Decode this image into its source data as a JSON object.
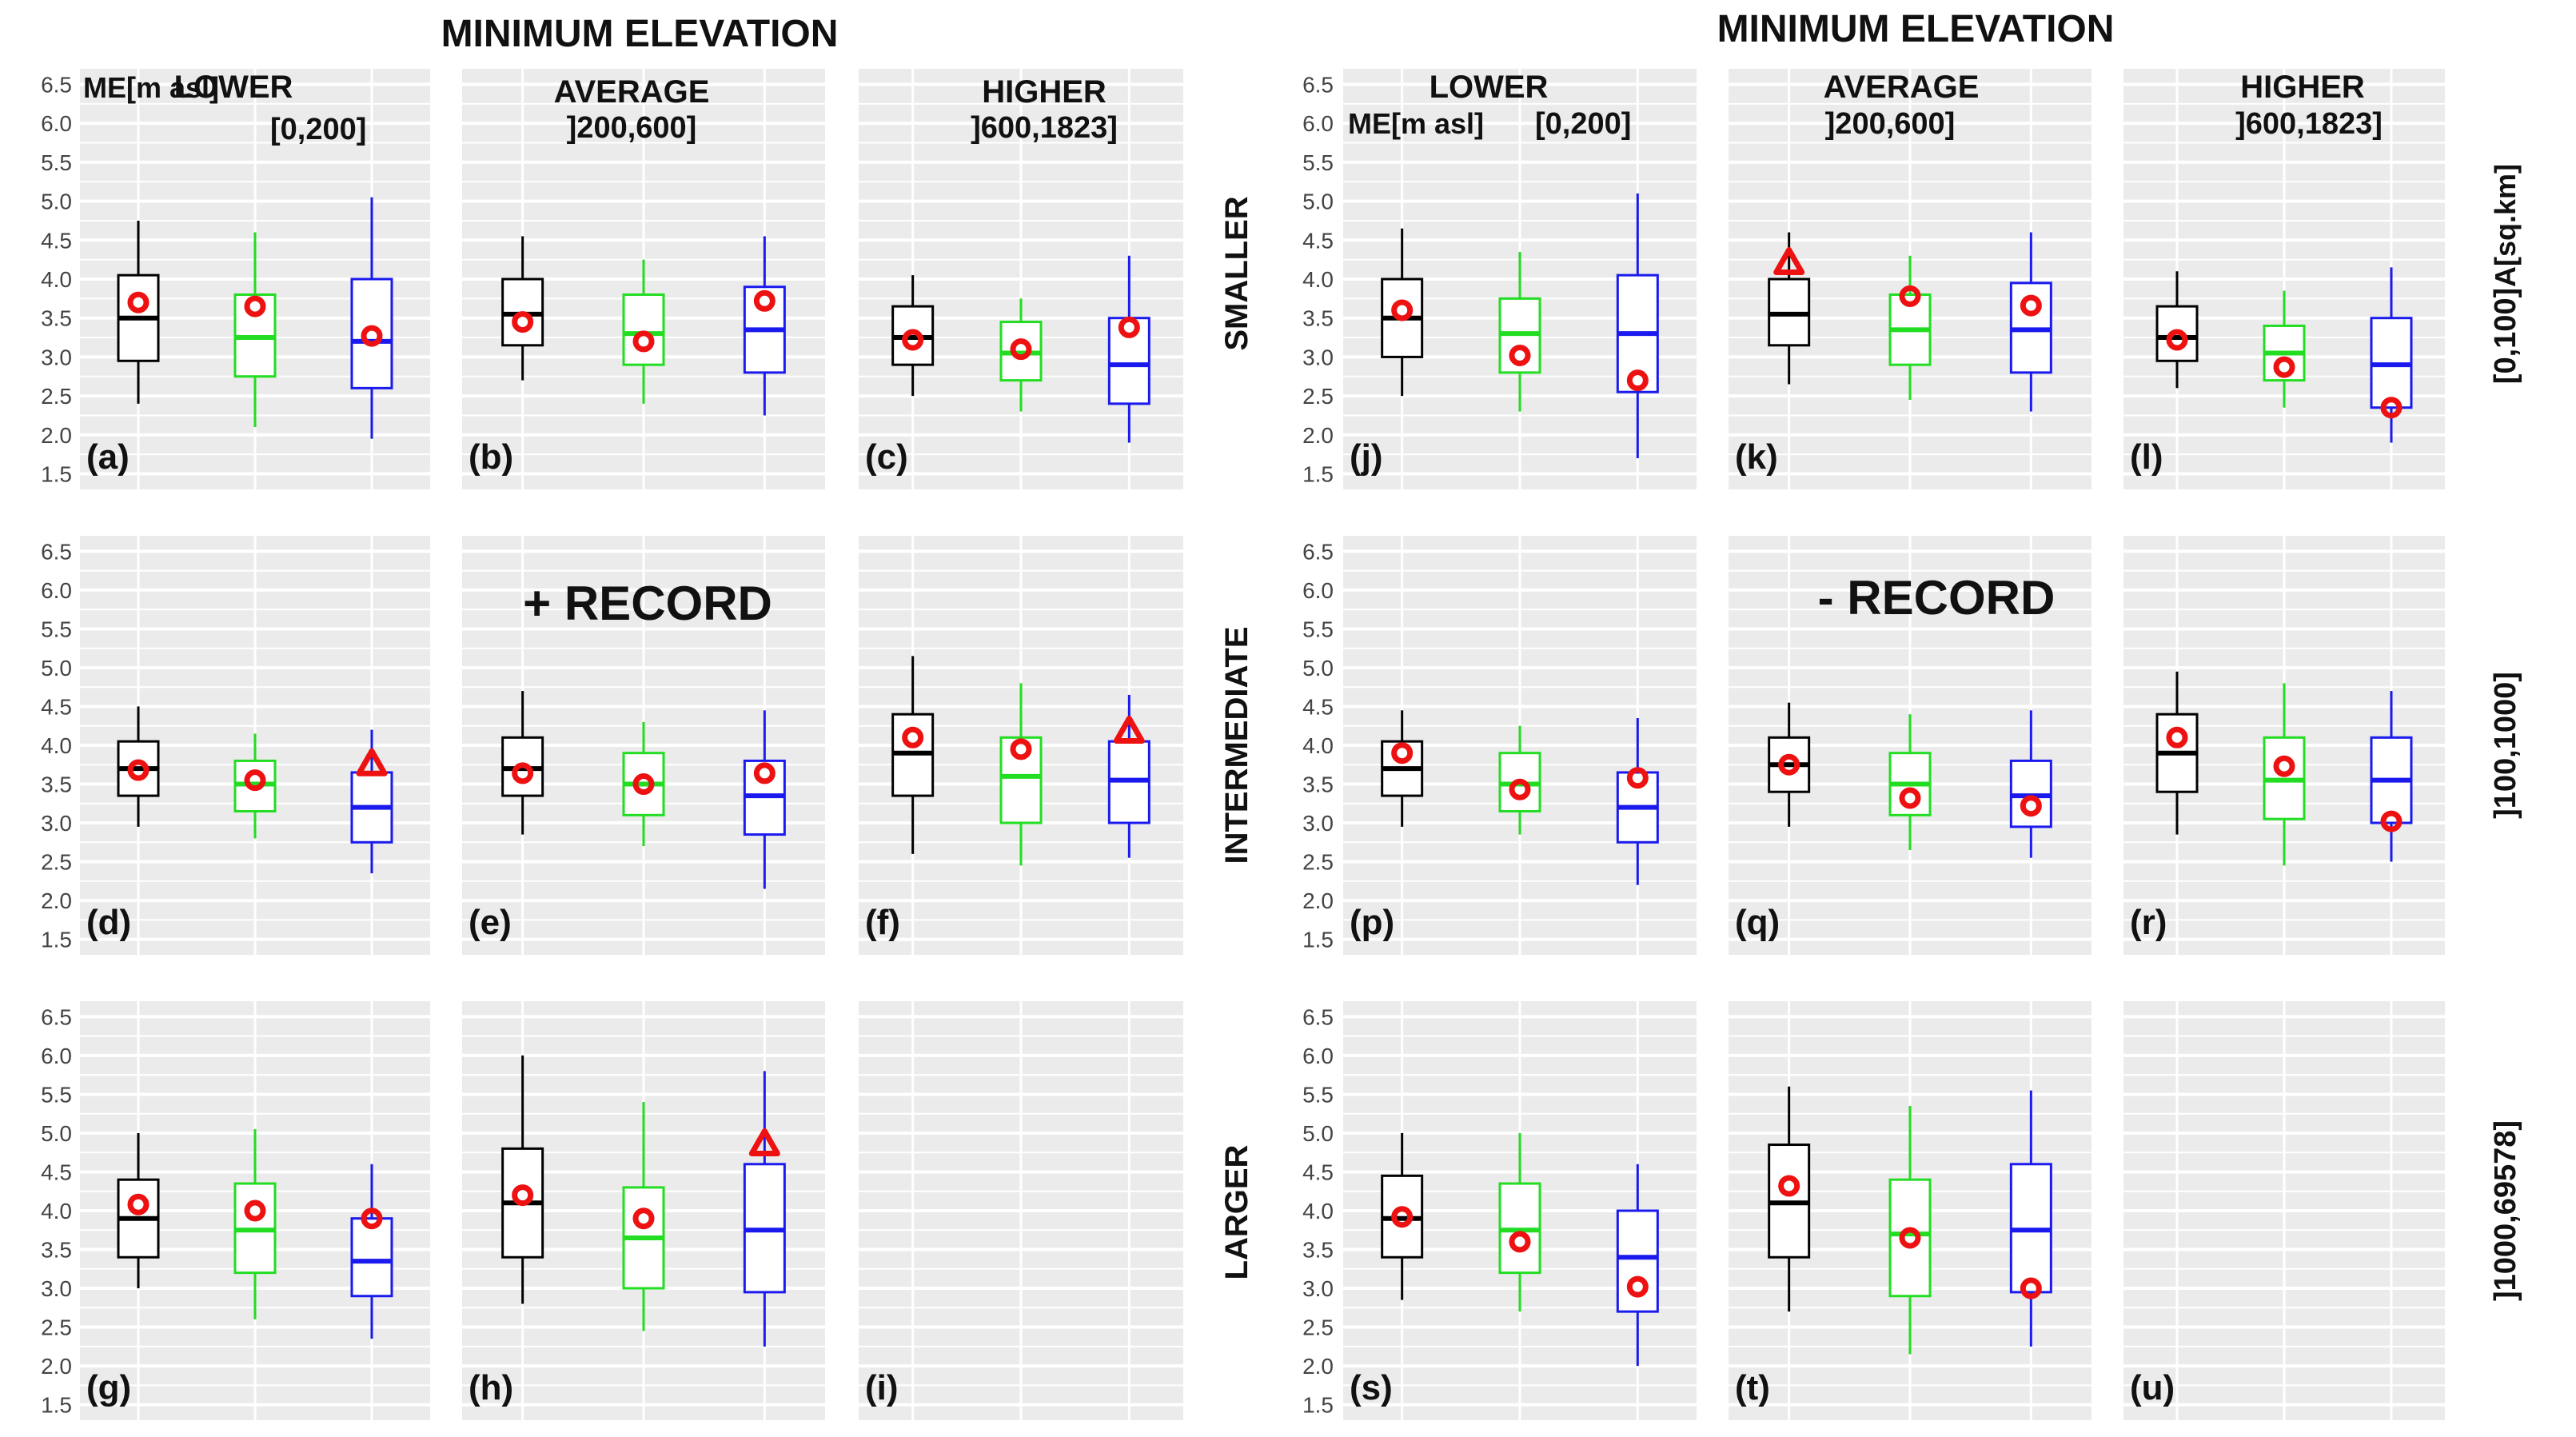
{
  "chart_data": {
    "type": "boxplot",
    "title_left": "MINIMUM ELEVATION",
    "title_right": "MINIMUM ELEVATION",
    "group_left": "+ RECORD",
    "group_right": "- RECORD",
    "me_label": "ME[m asl]",
    "area_label": "A[sq.km]",
    "columns": [
      {
        "name": "LOWER",
        "range": "[0,200]"
      },
      {
        "name": "AVERAGE",
        "range": "]200,600]"
      },
      {
        "name": "HIGHER",
        "range": "]600,1823]"
      }
    ],
    "rows": [
      {
        "name": "SMALLER",
        "range": "[0,100]"
      },
      {
        "name": "INTERMEDIATE",
        "range": "]100,1000]"
      },
      {
        "name": "LARGER",
        "range": "]1000,69578]"
      }
    ],
    "ylim": [
      1.3,
      6.7
    ],
    "y_ticks": [
      "1.5",
      "2.0",
      "2.5",
      "3.0",
      "3.5",
      "4.0",
      "4.5",
      "5.0",
      "5.5",
      "6.0",
      "6.5"
    ],
    "series_colors": [
      "#000000",
      "#22dd22",
      "#1a1aee"
    ],
    "marker_color": "#ee1111",
    "panels": [
      {
        "label": "(a)",
        "side": "left",
        "row": 0,
        "col": 0,
        "boxes": [
          {
            "min": 2.4,
            "q1": 2.95,
            "median": 3.5,
            "q3": 4.05,
            "max": 4.75,
            "marker": 3.7,
            "shape": "circle"
          },
          {
            "min": 2.1,
            "q1": 2.75,
            "median": 3.25,
            "q3": 3.8,
            "max": 4.6,
            "marker": 3.65,
            "shape": "circle"
          },
          {
            "min": 1.95,
            "q1": 2.6,
            "median": 3.2,
            "q3": 4.0,
            "max": 5.05,
            "marker": 3.27,
            "shape": "circle"
          }
        ]
      },
      {
        "label": "(b)",
        "side": "left",
        "row": 0,
        "col": 1,
        "boxes": [
          {
            "min": 2.7,
            "q1": 3.15,
            "median": 3.55,
            "q3": 4.0,
            "max": 4.55,
            "marker": 3.45,
            "shape": "circle"
          },
          {
            "min": 2.4,
            "q1": 2.9,
            "median": 3.3,
            "q3": 3.8,
            "max": 4.25,
            "marker": 3.2,
            "shape": "circle"
          },
          {
            "min": 2.25,
            "q1": 2.8,
            "median": 3.35,
            "q3": 3.9,
            "max": 4.55,
            "marker": 3.72,
            "shape": "circle"
          }
        ]
      },
      {
        "label": "(c)",
        "side": "left",
        "row": 0,
        "col": 2,
        "boxes": [
          {
            "min": 2.5,
            "q1": 2.9,
            "median": 3.25,
            "q3": 3.65,
            "max": 4.05,
            "marker": 3.22,
            "shape": "circle"
          },
          {
            "min": 2.3,
            "q1": 2.7,
            "median": 3.05,
            "q3": 3.45,
            "max": 3.75,
            "marker": 3.1,
            "shape": "circle"
          },
          {
            "min": 1.9,
            "q1": 2.4,
            "median": 2.9,
            "q3": 3.5,
            "max": 4.3,
            "marker": 3.38,
            "shape": "circle"
          }
        ]
      },
      {
        "label": "(d)",
        "side": "left",
        "row": 1,
        "col": 0,
        "boxes": [
          {
            "min": 2.95,
            "q1": 3.35,
            "median": 3.7,
            "q3": 4.05,
            "max": 4.5,
            "marker": 3.68,
            "shape": "circle"
          },
          {
            "min": 2.8,
            "q1": 3.15,
            "median": 3.5,
            "q3": 3.8,
            "max": 4.15,
            "marker": 3.55,
            "shape": "circle"
          },
          {
            "min": 2.35,
            "q1": 2.75,
            "median": 3.2,
            "q3": 3.65,
            "max": 4.2,
            "marker": 3.75,
            "shape": "triangle"
          }
        ]
      },
      {
        "label": "(e)",
        "side": "left",
        "row": 1,
        "col": 1,
        "boxes": [
          {
            "min": 2.85,
            "q1": 3.35,
            "median": 3.7,
            "q3": 4.1,
            "max": 4.7,
            "marker": 3.64,
            "shape": "circle"
          },
          {
            "min": 2.7,
            "q1": 3.1,
            "median": 3.5,
            "q3": 3.9,
            "max": 4.3,
            "marker": 3.5,
            "shape": "circle"
          },
          {
            "min": 2.15,
            "q1": 2.85,
            "median": 3.35,
            "q3": 3.8,
            "max": 4.45,
            "marker": 3.64,
            "shape": "circle"
          }
        ]
      },
      {
        "label": "(f)",
        "side": "left",
        "row": 1,
        "col": 2,
        "boxes": [
          {
            "min": 2.6,
            "q1": 3.35,
            "median": 3.9,
            "q3": 4.4,
            "max": 5.15,
            "marker": 4.1,
            "shape": "circle"
          },
          {
            "min": 2.45,
            "q1": 3.0,
            "median": 3.6,
            "q3": 4.1,
            "max": 4.8,
            "marker": 3.95,
            "shape": "circle"
          },
          {
            "min": 2.55,
            "q1": 3.0,
            "median": 3.55,
            "q3": 4.05,
            "max": 4.65,
            "marker": 4.17,
            "shape": "triangle"
          }
        ]
      },
      {
        "label": "(g)",
        "side": "left",
        "row": 2,
        "col": 0,
        "boxes": [
          {
            "min": 3.0,
            "q1": 3.4,
            "median": 3.9,
            "q3": 4.4,
            "max": 5.0,
            "marker": 4.08,
            "shape": "circle"
          },
          {
            "min": 2.6,
            "q1": 3.2,
            "median": 3.75,
            "q3": 4.35,
            "max": 5.05,
            "marker": 4.0,
            "shape": "circle"
          },
          {
            "min": 2.35,
            "q1": 2.9,
            "median": 3.35,
            "q3": 3.9,
            "max": 4.6,
            "marker": 3.9,
            "shape": "circle"
          }
        ]
      },
      {
        "label": "(h)",
        "side": "left",
        "row": 2,
        "col": 1,
        "boxes": [
          {
            "min": 2.8,
            "q1": 3.4,
            "median": 4.1,
            "q3": 4.8,
            "max": 6.0,
            "marker": 4.2,
            "shape": "circle"
          },
          {
            "min": 2.45,
            "q1": 3.0,
            "median": 3.65,
            "q3": 4.3,
            "max": 5.4,
            "marker": 3.9,
            "shape": "circle"
          },
          {
            "min": 2.25,
            "q1": 2.95,
            "median": 3.75,
            "q3": 4.6,
            "max": 5.8,
            "marker": 4.85,
            "shape": "triangle"
          }
        ]
      },
      {
        "label": "(i)",
        "side": "left",
        "row": 2,
        "col": 2,
        "boxes": []
      },
      {
        "label": "(j)",
        "side": "right",
        "row": 0,
        "col": 0,
        "boxes": [
          {
            "min": 2.5,
            "q1": 3.0,
            "median": 3.5,
            "q3": 4.0,
            "max": 4.65,
            "marker": 3.6,
            "shape": "circle"
          },
          {
            "min": 2.3,
            "q1": 2.8,
            "median": 3.3,
            "q3": 3.75,
            "max": 4.35,
            "marker": 3.02,
            "shape": "circle"
          },
          {
            "min": 1.7,
            "q1": 2.55,
            "median": 3.3,
            "q3": 4.05,
            "max": 5.1,
            "marker": 2.7,
            "shape": "circle"
          }
        ]
      },
      {
        "label": "(k)",
        "side": "right",
        "row": 0,
        "col": 1,
        "boxes": [
          {
            "min": 2.65,
            "q1": 3.15,
            "median": 3.55,
            "q3": 4.0,
            "max": 4.6,
            "marker": 4.2,
            "shape": "triangle"
          },
          {
            "min": 2.45,
            "q1": 2.9,
            "median": 3.35,
            "q3": 3.8,
            "max": 4.3,
            "marker": 3.78,
            "shape": "circle"
          },
          {
            "min": 2.3,
            "q1": 2.8,
            "median": 3.35,
            "q3": 3.95,
            "max": 4.6,
            "marker": 3.66,
            "shape": "circle"
          }
        ]
      },
      {
        "label": "(l)",
        "side": "right",
        "row": 0,
        "col": 2,
        "boxes": [
          {
            "min": 2.6,
            "q1": 2.95,
            "median": 3.25,
            "q3": 3.65,
            "max": 4.1,
            "marker": 3.22,
            "shape": "circle"
          },
          {
            "min": 2.35,
            "q1": 2.7,
            "median": 3.05,
            "q3": 3.4,
            "max": 3.85,
            "marker": 2.87,
            "shape": "circle"
          },
          {
            "min": 1.9,
            "q1": 2.35,
            "median": 2.9,
            "q3": 3.5,
            "max": 4.15,
            "marker": 2.35,
            "shape": "circle"
          }
        ]
      },
      {
        "label": "(p)",
        "side": "right",
        "row": 1,
        "col": 0,
        "boxes": [
          {
            "min": 2.95,
            "q1": 3.35,
            "median": 3.7,
            "q3": 4.05,
            "max": 4.45,
            "marker": 3.9,
            "shape": "circle"
          },
          {
            "min": 2.85,
            "q1": 3.15,
            "median": 3.5,
            "q3": 3.9,
            "max": 4.25,
            "marker": 3.43,
            "shape": "circle"
          },
          {
            "min": 2.2,
            "q1": 2.75,
            "median": 3.2,
            "q3": 3.65,
            "max": 4.35,
            "marker": 3.58,
            "shape": "circle"
          }
        ]
      },
      {
        "label": "(q)",
        "side": "right",
        "row": 1,
        "col": 1,
        "boxes": [
          {
            "min": 2.95,
            "q1": 3.4,
            "median": 3.75,
            "q3": 4.1,
            "max": 4.55,
            "marker": 3.75,
            "shape": "circle"
          },
          {
            "min": 2.65,
            "q1": 3.1,
            "median": 3.5,
            "q3": 3.9,
            "max": 4.4,
            "marker": 3.32,
            "shape": "circle"
          },
          {
            "min": 2.55,
            "q1": 2.95,
            "median": 3.35,
            "q3": 3.8,
            "max": 4.45,
            "marker": 3.22,
            "shape": "circle"
          }
        ]
      },
      {
        "label": "(r)",
        "side": "right",
        "row": 1,
        "col": 2,
        "boxes": [
          {
            "min": 2.85,
            "q1": 3.4,
            "median": 3.9,
            "q3": 4.4,
            "max": 4.95,
            "marker": 4.1,
            "shape": "circle"
          },
          {
            "min": 2.45,
            "q1": 3.05,
            "median": 3.55,
            "q3": 4.1,
            "max": 4.8,
            "marker": 3.73,
            "shape": "circle"
          },
          {
            "min": 2.5,
            "q1": 3.0,
            "median": 3.55,
            "q3": 4.1,
            "max": 4.7,
            "marker": 3.02,
            "shape": "circle"
          }
        ]
      },
      {
        "label": "(s)",
        "side": "right",
        "row": 2,
        "col": 0,
        "boxes": [
          {
            "min": 2.85,
            "q1": 3.4,
            "median": 3.9,
            "q3": 4.45,
            "max": 5.0,
            "marker": 3.92,
            "shape": "circle"
          },
          {
            "min": 2.7,
            "q1": 3.2,
            "median": 3.75,
            "q3": 4.35,
            "max": 5.0,
            "marker": 3.6,
            "shape": "circle"
          },
          {
            "min": 2.0,
            "q1": 2.7,
            "median": 3.4,
            "q3": 4.0,
            "max": 4.6,
            "marker": 3.02,
            "shape": "circle"
          }
        ]
      },
      {
        "label": "(t)",
        "side": "right",
        "row": 2,
        "col": 1,
        "boxes": [
          {
            "min": 2.7,
            "q1": 3.4,
            "median": 4.1,
            "q3": 4.85,
            "max": 5.6,
            "marker": 4.32,
            "shape": "circle"
          },
          {
            "min": 2.15,
            "q1": 2.9,
            "median": 3.7,
            "q3": 4.4,
            "max": 5.35,
            "marker": 3.65,
            "shape": "circle"
          },
          {
            "min": 2.25,
            "q1": 2.95,
            "median": 3.75,
            "q3": 4.6,
            "max": 5.55,
            "marker": 3.0,
            "shape": "circle"
          }
        ]
      },
      {
        "label": "(u)",
        "side": "right",
        "row": 2,
        "col": 2,
        "boxes": []
      }
    ]
  }
}
